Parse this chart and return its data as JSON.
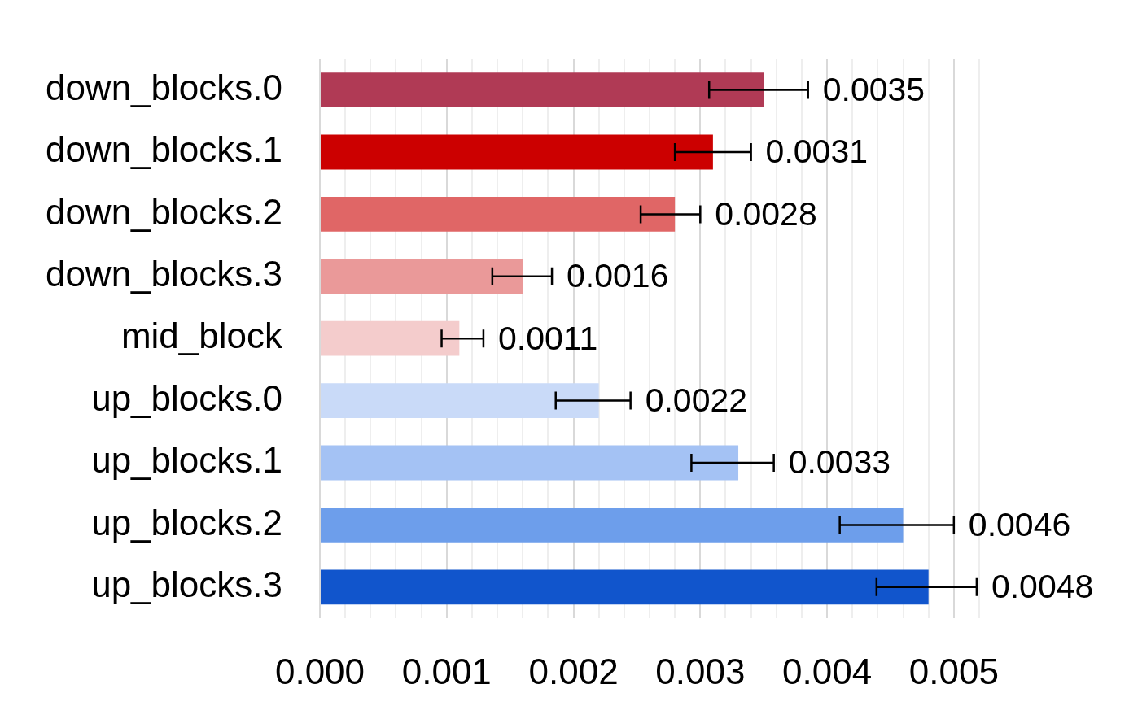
{
  "chart_data": {
    "type": "bar",
    "orientation": "horizontal",
    "categories": [
      "down_blocks.0",
      "down_blocks.1",
      "down_blocks.2",
      "down_blocks.3",
      "mid_block",
      "up_blocks.0",
      "up_blocks.1",
      "up_blocks.2",
      "up_blocks.3"
    ],
    "values": [
      0.0035,
      0.0031,
      0.0028,
      0.0016,
      0.0011,
      0.0022,
      0.0033,
      0.0046,
      0.0048
    ],
    "colors": [
      "#b03a55",
      "#cc0000",
      "#e06666",
      "#ea9999",
      "#f4cccc",
      "#c9daf8",
      "#a4c2f4",
      "#6d9eeb",
      "#1155cc"
    ],
    "errors": [
      [
        0.00307,
        0.00385
      ],
      [
        0.0028,
        0.0034
      ],
      [
        0.00253,
        0.003
      ],
      [
        0.00136,
        0.00183
      ],
      [
        0.00096,
        0.00129
      ],
      [
        0.00186,
        0.00245
      ],
      [
        0.00293,
        0.00358
      ],
      [
        0.0041,
        0.005
      ],
      [
        0.00439,
        0.00518
      ]
    ],
    "xlim": [
      0,
      0.0052
    ],
    "xticks": [
      {
        "value": 0,
        "label": "0.000"
      },
      {
        "value": 0.0002,
        "label": null
      },
      {
        "value": 0.0004,
        "label": null
      },
      {
        "value": 0.0006,
        "label": null
      },
      {
        "value": 0.0008,
        "label": null
      },
      {
        "value": 0.001,
        "label": "0.001"
      },
      {
        "value": 0.0012,
        "label": null
      },
      {
        "value": 0.0014,
        "label": null
      },
      {
        "value": 0.0016,
        "label": null
      },
      {
        "value": 0.0018,
        "label": null
      },
      {
        "value": 0.002,
        "label": "0.002"
      },
      {
        "value": 0.0022,
        "label": null
      },
      {
        "value": 0.0024,
        "label": null
      },
      {
        "value": 0.0026,
        "label": null
      },
      {
        "value": 0.0028,
        "label": null
      },
      {
        "value": 0.003,
        "label": "0.003"
      },
      {
        "value": 0.0032,
        "label": null
      },
      {
        "value": 0.0034,
        "label": null
      },
      {
        "value": 0.0036,
        "label": null
      },
      {
        "value": 0.0038,
        "label": null
      },
      {
        "value": 0.004,
        "label": "0.004"
      },
      {
        "value": 0.0042,
        "label": null
      },
      {
        "value": 0.0044,
        "label": null
      },
      {
        "value": 0.0046,
        "label": null
      },
      {
        "value": 0.0048,
        "label": null
      },
      {
        "value": 0.005,
        "label": "0.005"
      },
      {
        "value": 0.0052,
        "label": null
      }
    ],
    "grid": "x",
    "data_labels": true
  }
}
